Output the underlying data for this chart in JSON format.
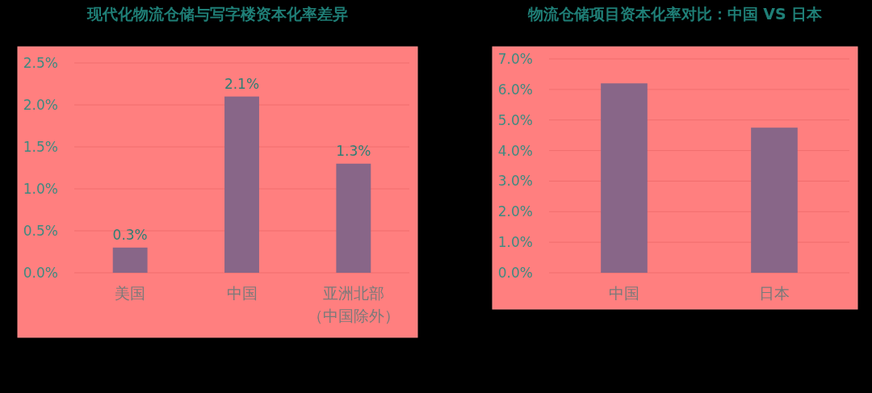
{
  "chart_data": [
    {
      "type": "bar",
      "title": "现代化物流仓储与写字楼资本化率差异",
      "categories": [
        "美国",
        "中国",
        "亚洲北部（中国除外）"
      ],
      "values": [
        0.3,
        2.1,
        1.3
      ],
      "color": "#886688",
      "ylim": [
        0,
        2.5
      ],
      "yticks": [
        {
          "value": 0,
          "label": "0.0%"
        },
        {
          "value": 0.5,
          "label": "0.5%"
        },
        {
          "value": 1,
          "label": "1.0%"
        },
        {
          "value": 1.5,
          "label": "1.5%"
        },
        {
          "value": 2,
          "label": "2.0%"
        },
        {
          "value": 2.5,
          "label": "2.5%"
        }
      ],
      "grid": "y",
      "data_labels": true,
      "value_labels": [
        "0.3%",
        "2.1%",
        "1.3%"
      ]
    },
    {
      "type": "bar",
      "title": "物流仓储项目资本化率对比：中国 VS 日本",
      "categories": [
        "中国",
        "日本"
      ],
      "values": [
        6.2,
        4.75
      ],
      "color": "#886688",
      "ylim": [
        0,
        7
      ],
      "yticks": [
        {
          "value": 0,
          "label": "0.0%"
        },
        {
          "value": 1,
          "label": "1.0%"
        },
        {
          "value": 2,
          "label": "2.0%"
        },
        {
          "value": 3,
          "label": "3.0%"
        },
        {
          "value": 4,
          "label": "4.0%"
        },
        {
          "value": 5,
          "label": "5.0%"
        },
        {
          "value": 6,
          "label": "6.0%"
        },
        {
          "value": 7,
          "label": "7.0%"
        }
      ],
      "grid": "y"
    }
  ]
}
